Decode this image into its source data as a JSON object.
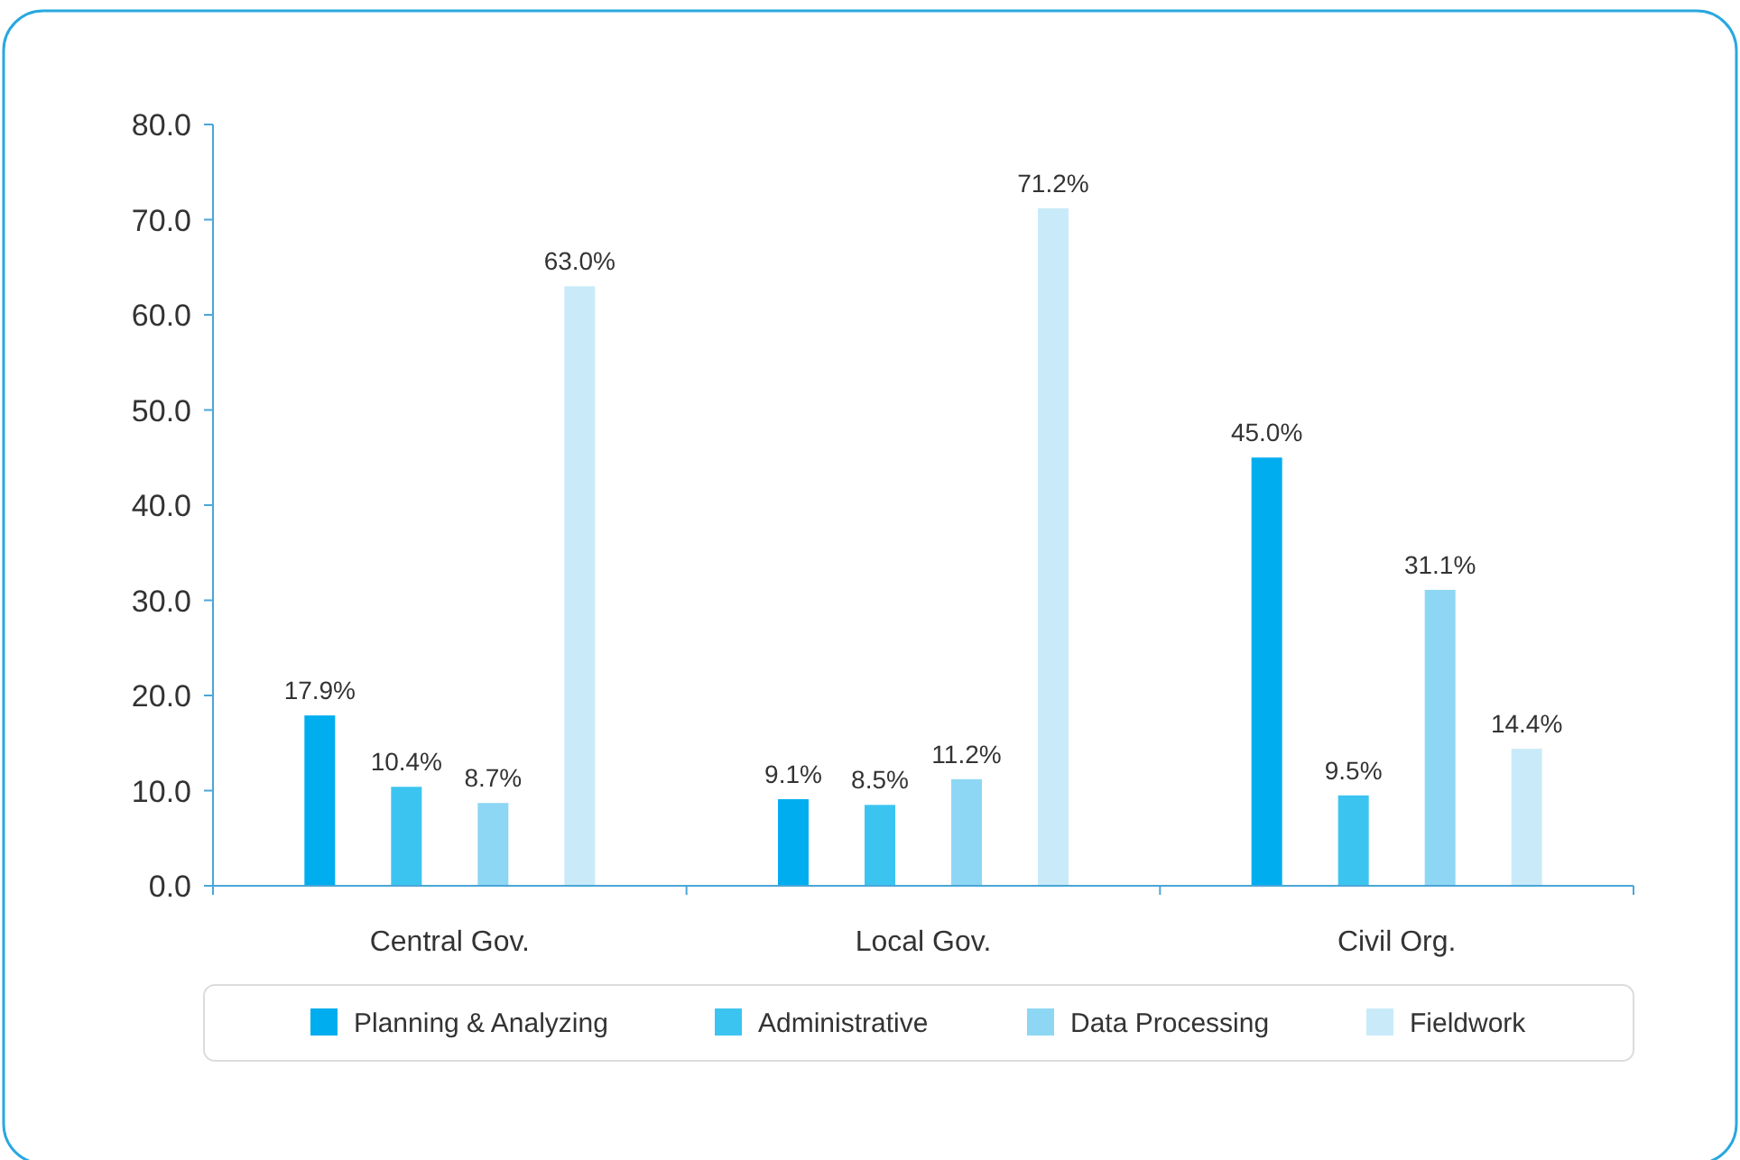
{
  "chart_data": {
    "type": "bar",
    "categories": [
      "Central Gov.",
      "Local Gov.",
      "Civil Org."
    ],
    "series": [
      {
        "name": "Planning & Analyzing",
        "color": "#00aeef",
        "values": [
          17.9,
          9.1,
          45.0
        ],
        "value_labels": [
          "17.9%",
          "9.1%",
          "45.0%"
        ]
      },
      {
        "name": "Administrative",
        "color": "#3cc4f0",
        "values": [
          10.4,
          8.5,
          9.5
        ],
        "value_labels": [
          "10.4%",
          "8.5%",
          "9.5%"
        ]
      },
      {
        "name": "Data Processing",
        "color": "#8dd7f4",
        "values": [
          8.7,
          11.2,
          31.1
        ],
        "value_labels": [
          "8.7%",
          "11.2%",
          "31.1%"
        ]
      },
      {
        "name": "Fieldwork",
        "color": "#c9ebf9",
        "values": [
          63.0,
          71.2,
          14.4
        ],
        "value_labels": [
          "63.0%",
          "71.2%",
          "14.4%"
        ]
      }
    ],
    "ylim": [
      0,
      80
    ],
    "yticks": [
      {
        "value": 0,
        "label": "0.0"
      },
      {
        "value": 10,
        "label": "10.0"
      },
      {
        "value": 20,
        "label": "20.0"
      },
      {
        "value": 30,
        "label": "30.0"
      },
      {
        "value": 40,
        "label": "40.0"
      },
      {
        "value": 50,
        "label": "50.0"
      },
      {
        "value": 60,
        "label": "60.0"
      },
      {
        "value": 70,
        "label": "70.0"
      },
      {
        "value": 80,
        "label": "80.0"
      }
    ],
    "grid": false,
    "legend": "bottom"
  }
}
